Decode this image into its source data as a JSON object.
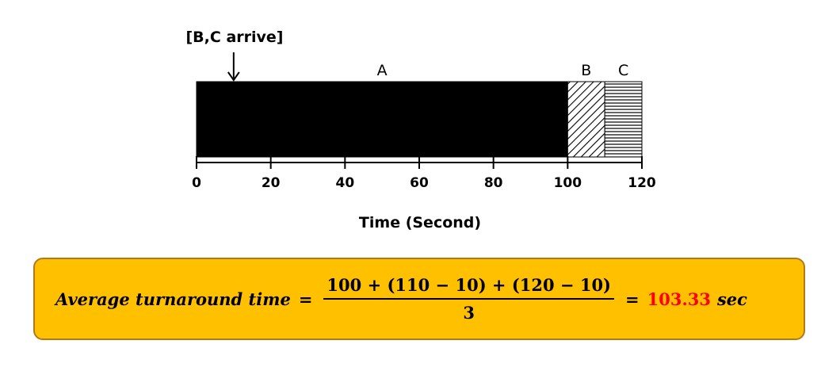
{
  "annotation": {
    "label": "[B,C arrive]",
    "at": 10
  },
  "segments": [
    {
      "label": "A",
      "start": 0,
      "end": 100,
      "pattern": "solid-black"
    },
    {
      "label": "B",
      "start": 100,
      "end": 110,
      "pattern": "diagonal-hatch"
    },
    {
      "label": "C",
      "start": 110,
      "end": 120,
      "pattern": "horizontal-hatch"
    }
  ],
  "axis": {
    "min": 0,
    "max": 120,
    "ticks": [
      "0",
      "20",
      "40",
      "60",
      "80",
      "100",
      "120"
    ],
    "tick_values": [
      0,
      20,
      40,
      60,
      80,
      100,
      120
    ],
    "label": "Time (Second)"
  },
  "formula": {
    "lhs": "Average turnaround time",
    "equals": "=",
    "numerator": "100 + (110 − 10) + (120 − 10)",
    "denominator": "3",
    "result": "103.33",
    "unit": "sec",
    "box_color": "#ffc000",
    "result_color": "#ff0000"
  }
}
